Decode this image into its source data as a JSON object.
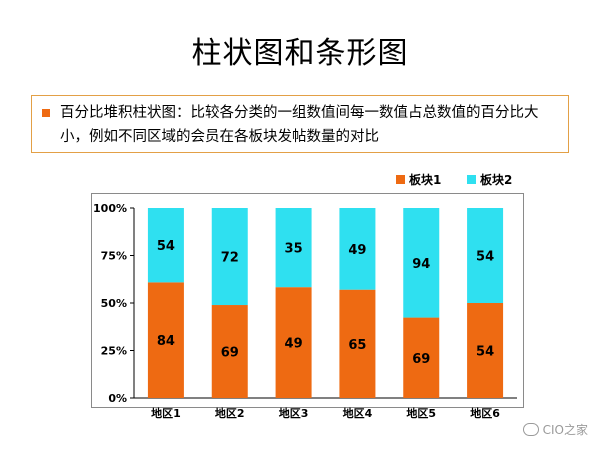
{
  "slide": {
    "title": "柱状图和条形图",
    "bullet": "百分比堆积柱状图：比较各分类的一组数值间每一数值占总数值的百分比大小，例如不同区域的会员在各板块发帖数量的对比"
  },
  "watermark": "CIO之家",
  "colors": {
    "series1": "#ee6a12",
    "series2": "#2fe0f0",
    "bullet": "#ee6a12",
    "border": "#e3a046"
  },
  "chart_data": {
    "type": "bar",
    "stacked": "percent",
    "categories": [
      "地区1",
      "地区2",
      "地区3",
      "地区4",
      "地区5",
      "地区6"
    ],
    "series": [
      {
        "name": "板块1",
        "values": [
          84,
          69,
          49,
          65,
          69,
          54
        ],
        "color": "#ee6a12"
      },
      {
        "name": "板块2",
        "values": [
          54,
          72,
          35,
          49,
          94,
          54
        ],
        "color": "#2fe0f0"
      }
    ],
    "yticks": [
      "0%",
      "25%",
      "50%",
      "75%",
      "100%"
    ],
    "ylim": [
      0,
      100
    ],
    "grid": false,
    "legend_position": "top-right"
  }
}
